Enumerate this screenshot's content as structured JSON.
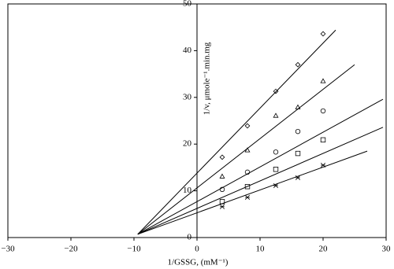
{
  "chart_data": {
    "type": "scatter",
    "x_label": "1/GSSG, (mM⁻¹)",
    "y_label": "1/v, μmole⁻¹.min.mg",
    "xlim": [
      -30,
      30
    ],
    "xticks": [
      {
        "value": -30,
        "label": "−30"
      },
      {
        "value": -20,
        "label": "−20"
      },
      {
        "value": -10,
        "label": "−10"
      },
      0,
      10,
      20,
      30
    ],
    "ylim": [
      0,
      50
    ],
    "yticks": [
      0,
      10,
      20,
      30,
      40,
      50
    ],
    "color": "#000000",
    "series": [
      {
        "marker": "diamond",
        "x": [
          4,
          8,
          12.5,
          16,
          20
        ],
        "values": [
          17.2,
          23.9,
          31.3,
          37,
          43.6
        ],
        "fit": {
          "x": [
            -9.4,
            22
          ],
          "values": [
            0.7,
            44.4
          ]
        }
      },
      {
        "marker": "triangle",
        "x": [
          4,
          8,
          12.5,
          16,
          20
        ],
        "values": [
          13.1,
          18.7,
          26.1,
          27.9,
          33.5
        ],
        "fit": {
          "x": [
            -9.4,
            25
          ],
          "values": [
            0.7,
            37
          ]
        }
      },
      {
        "marker": "circle",
        "x": [
          4,
          8,
          12.5,
          16,
          20
        ],
        "values": [
          10.3,
          14,
          18.3,
          22.7,
          27.1
        ],
        "fit": {
          "x": [
            -9.4,
            29.5
          ],
          "values": [
            0.7,
            29.6
          ]
        }
      },
      {
        "marker": "square",
        "x": [
          4,
          8,
          12.5,
          16,
          20
        ],
        "values": [
          7.7,
          10.9,
          14.6,
          18,
          20.9
        ],
        "fit": {
          "x": [
            -9.4,
            29.5
          ],
          "values": [
            0.7,
            23.6
          ]
        }
      },
      {
        "marker": "star",
        "x": [
          4,
          8,
          12.5,
          16,
          20
        ],
        "values": [
          6.6,
          8.6,
          11.1,
          12.8,
          15.5
        ],
        "fit": {
          "x": [
            -9.4,
            27
          ],
          "values": [
            0.7,
            18.5
          ]
        }
      }
    ]
  }
}
